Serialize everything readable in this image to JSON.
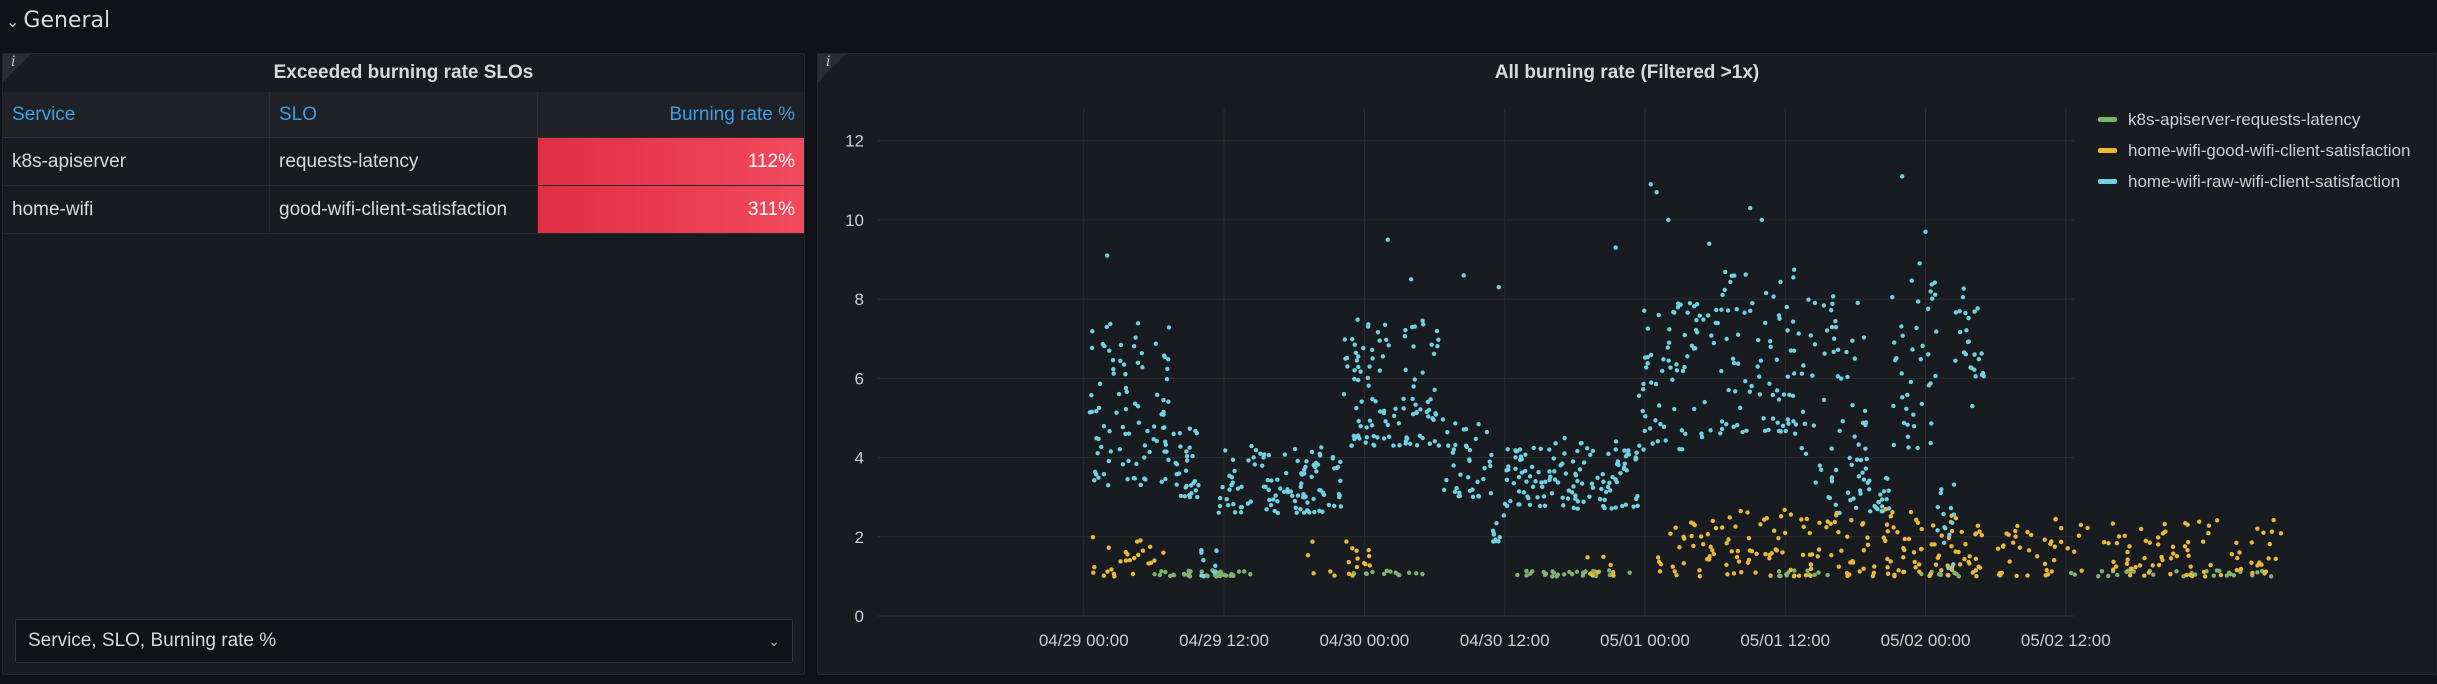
{
  "row": {
    "title": "General",
    "chevron_icon": "chevron-down-icon"
  },
  "table_panel": {
    "info_icon": "i",
    "title": "Exceeded burning rate SLOs",
    "columns": [
      "Service",
      "SLO",
      "Burning rate %"
    ],
    "rows": [
      {
        "service": "k8s-apiserver",
        "slo": "requests-latency",
        "rate": "112%"
      },
      {
        "service": "home-wifi",
        "slo": "good-wifi-client-satisfaction",
        "rate": "311%"
      }
    ],
    "column_selector": {
      "value": "Service, SLO, Burning rate %"
    }
  },
  "chart_panel": {
    "info_icon": "i",
    "title": "All burning rate (Filtered >1x)",
    "legend": [
      {
        "name": "k8s-apiserver-requests-latency",
        "color": "#7eb26d"
      },
      {
        "name": "home-wifi-good-wifi-client-satisfaction",
        "color": "#eab839"
      },
      {
        "name": "home-wifi-raw-wifi-client-satisfaction",
        "color": "#6ed0e0"
      }
    ]
  },
  "chart_data": {
    "type": "scatter",
    "title": "All burning rate (Filtered >1x)",
    "xlabel": "",
    "ylabel": "",
    "ylim": [
      0,
      12.8
    ],
    "xlim_hours_from_0428_12": [
      -5.6,
      48.7
    ],
    "x_ticks": [
      "04/29 00:00",
      "04/29 12:00",
      "04/30 00:00",
      "04/30 12:00",
      "05/01 00:00",
      "05/01 12:00",
      "05/02 00:00",
      "05/02 12:00"
    ],
    "x_tick_hours": [
      12,
      24,
      36,
      48,
      60,
      72,
      84,
      96
    ],
    "y_ticks": [
      0,
      2,
      4,
      6,
      8,
      10,
      12
    ],
    "grid": true,
    "legend_position": "top-right",
    "series": [
      {
        "name": "k8s-apiserver-requests-latency",
        "color": "#7eb26d",
        "segments": [
          {
            "x0": 5.0,
            "x1": 14.5,
            "ymin": 1.0,
            "ymax": 1.15,
            "n": 35
          },
          {
            "x0": 23.0,
            "x1": 29.0,
            "ymin": 1.0,
            "ymax": 1.15,
            "n": 14
          },
          {
            "x0": 37.0,
            "x1": 47.0,
            "ymin": 1.0,
            "ymax": 1.15,
            "n": 30
          },
          {
            "x0": 59.0,
            "x1": 64.0,
            "ymin": 1.0,
            "ymax": 1.15,
            "n": 12
          },
          {
            "x0": 71.0,
            "x1": 76.0,
            "ymin": 1.0,
            "ymax": 1.15,
            "n": 12
          },
          {
            "x0": 84.0,
            "x1": 102.0,
            "ymin": 1.0,
            "ymax": 1.15,
            "n": 30
          }
        ]
      },
      {
        "name": "home-wifi-good-wifi-client-satisfaction",
        "color": "#eab839",
        "segments": [
          {
            "x0": 0.5,
            "x1": 7.0,
            "ymin": 1.0,
            "ymax": 2.0,
            "n": 25
          },
          {
            "x0": 19.0,
            "x1": 24.5,
            "ymin": 1.0,
            "ymax": 1.9,
            "n": 18
          },
          {
            "x0": 43.0,
            "x1": 46.5,
            "ymin": 1.0,
            "ymax": 1.6,
            "n": 8
          },
          {
            "x0": 49.0,
            "x1": 71.0,
            "ymin": 1.0,
            "ymax": 2.7,
            "n": 140
          },
          {
            "x0": 71.0,
            "x1": 77.0,
            "ymin": 1.0,
            "ymax": 2.6,
            "n": 50
          },
          {
            "x0": 78.0,
            "x1": 102.5,
            "ymin": 1.0,
            "ymax": 2.5,
            "n": 120
          }
        ]
      },
      {
        "name": "home-wifi-raw-wifi-client-satisfaction",
        "color": "#6ed0e0",
        "segments": [
          {
            "x0": 0.5,
            "x1": 7.5,
            "ymin": 3.3,
            "ymax": 7.6,
            "n": 90
          },
          {
            "x0": 7.5,
            "x1": 10.0,
            "ymin": 3.0,
            "ymax": 4.8,
            "n": 30
          },
          {
            "x0": 10.0,
            "x1": 11.5,
            "ymin": 1.0,
            "ymax": 1.9,
            "n": 12
          },
          {
            "x0": 11.5,
            "x1": 22.0,
            "ymin": 2.6,
            "ymax": 4.3,
            "n": 110
          },
          {
            "x0": 22.0,
            "x1": 30.5,
            "ymin": 4.3,
            "ymax": 7.5,
            "n": 110
          },
          {
            "x0": 30.5,
            "x1": 35.0,
            "ymin": 3.0,
            "ymax": 5.0,
            "n": 40
          },
          {
            "x0": 35.0,
            "x1": 36.0,
            "ymin": 1.7,
            "ymax": 2.6,
            "n": 10
          },
          {
            "x0": 36.0,
            "x1": 47.5,
            "ymin": 2.7,
            "ymax": 4.5,
            "n": 130
          },
          {
            "x0": 47.5,
            "x1": 54.0,
            "ymin": 4.2,
            "ymax": 7.9,
            "n": 70
          },
          {
            "x0": 54.0,
            "x1": 61.0,
            "ymin": 4.6,
            "ymax": 8.8,
            "n": 80
          },
          {
            "x0": 61.0,
            "x1": 67.0,
            "ymin": 2.6,
            "ymax": 8.1,
            "n": 70
          },
          {
            "x0": 67.0,
            "x1": 69.0,
            "ymin": 2.6,
            "ymax": 3.6,
            "n": 20
          },
          {
            "x0": 69.0,
            "x1": 73.0,
            "ymin": 4.0,
            "ymax": 8.6,
            "n": 40
          },
          {
            "x0": 73.0,
            "x1": 74.5,
            "ymin": 1.2,
            "ymax": 3.6,
            "n": 15
          },
          {
            "x0": 74.5,
            "x1": 77.0,
            "ymin": 6.0,
            "ymax": 8.4,
            "n": 25
          }
        ],
        "outliers": [
          [
            2.0,
            9.1
          ],
          [
            26.0,
            9.5
          ],
          [
            32.5,
            8.6
          ],
          [
            35.5,
            8.3
          ],
          [
            45.5,
            9.3
          ],
          [
            48.5,
            10.9
          ],
          [
            49.0,
            10.7
          ],
          [
            50.0,
            10.0
          ],
          [
            53.5,
            9.4
          ],
          [
            57.0,
            10.3
          ],
          [
            58.0,
            10.0
          ],
          [
            70.0,
            11.1
          ],
          [
            72.0,
            9.7
          ],
          [
            71.5,
            8.9
          ],
          [
            76.0,
            5.3
          ],
          [
            64.0,
            3.4
          ],
          [
            28.0,
            8.5
          ]
        ]
      }
    ]
  }
}
